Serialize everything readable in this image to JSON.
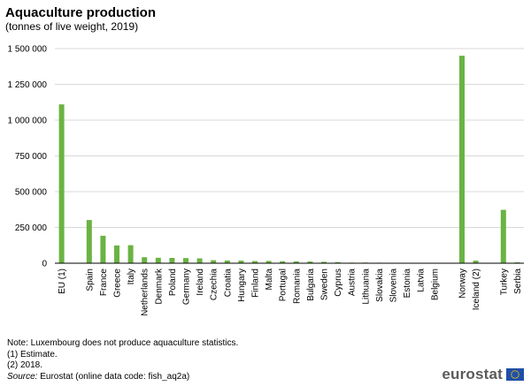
{
  "title": "Aquaculture production",
  "subtitle": "(tonnes of live weight, 2019)",
  "chart_data": {
    "type": "bar",
    "title": "Aquaculture production",
    "subtitle": "(tonnes of live weight, 2019)",
    "xlabel": "",
    "ylabel": "",
    "ylim": [
      0,
      1500000
    ],
    "yticks": [
      0,
      250000,
      500000,
      750000,
      1000000,
      1250000,
      1500000
    ],
    "ytick_labels": [
      "0",
      "250 000",
      "500 000",
      "750 000",
      "1 000 000",
      "1 250 000",
      "1 500 000"
    ],
    "grid": true,
    "legend": "none",
    "bar_color": "#6ab343",
    "groups": [
      [
        "EU (1)"
      ],
      [
        "Spain",
        "France",
        "Greece",
        "Italy",
        "Netherlands",
        "Denmark",
        "Poland",
        "Germany",
        "Ireland",
        "Czechia",
        "Croatia",
        "Hungary",
        "Finland",
        "Malta",
        "Portugal",
        "Romania",
        "Bulgaria",
        "Sweden",
        "Cyprus",
        "Austria",
        "Lithuania",
        "Slovakia",
        "Slovenia",
        "Estonia",
        "Latvia",
        "Belgium"
      ],
      [
        "Norway",
        "Iceland (2)"
      ],
      [
        "Turkey",
        "Serbia"
      ]
    ],
    "categories": [
      "EU (1)",
      "Spain",
      "France",
      "Greece",
      "Italy",
      "Netherlands",
      "Denmark",
      "Poland",
      "Germany",
      "Ireland",
      "Czechia",
      "Croatia",
      "Hungary",
      "Finland",
      "Malta",
      "Portugal",
      "Romania",
      "Bulgaria",
      "Sweden",
      "Cyprus",
      "Austria",
      "Lithuania",
      "Slovakia",
      "Slovenia",
      "Estonia",
      "Latvia",
      "Belgium",
      "Norway",
      "Iceland (2)",
      "Turkey",
      "Serbia"
    ],
    "values": [
      1110000,
      302000,
      192000,
      124000,
      126000,
      42000,
      38000,
      37000,
      36000,
      34000,
      21000,
      19000,
      18000,
      15000,
      16000,
      14000,
      13000,
      12000,
      10000,
      8000,
      4000,
      4500,
      3500,
      2000,
      1500,
      1500,
      600,
      1450000,
      18000,
      373000,
      6000
    ]
  },
  "notes": {
    "note": "Note: Luxembourg does not produce aquaculture statistics.",
    "estimate": "(1) Estimate.",
    "year": "(2) 2018.",
    "source_label": "Source:",
    "source_text": " Eurostat (online data code: fish_aq2a)"
  },
  "logo": {
    "text": "eurostat",
    "flag_blue": "#1f4fa8",
    "star_color": "#ffcc00"
  }
}
